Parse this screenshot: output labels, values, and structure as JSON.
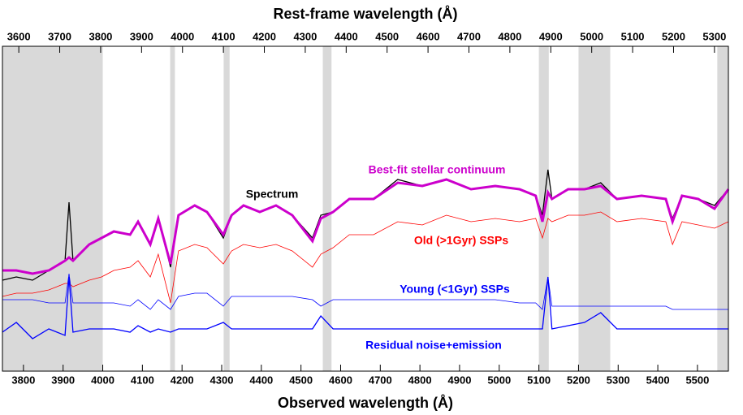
{
  "chart_data": {
    "type": "line",
    "xlabel": "Observed wavelength (Å)",
    "x2label": "Rest-frame wavelength (Å)",
    "xlim": [
      3747,
      5578
    ],
    "xticks": [
      3800,
      3900,
      4000,
      4100,
      4200,
      4300,
      4400,
      4500,
      4600,
      4700,
      4800,
      4900,
      5000,
      5100,
      5200,
      5300,
      5400,
      5500
    ],
    "x2lim": [
      3560,
      5334
    ],
    "x2ticks": [
      3600,
      3700,
      3800,
      3900,
      4000,
      4100,
      4200,
      4300,
      4400,
      4500,
      4600,
      4700,
      4800,
      4900,
      5000,
      5100,
      5200,
      5300
    ],
    "ylim": [
      0,
      1
    ],
    "masked_regions": [
      [
        3747,
        4000
      ],
      [
        4170,
        4182
      ],
      [
        4305,
        4320
      ],
      [
        4555,
        4577
      ],
      [
        5100,
        5125
      ],
      [
        5200,
        5280
      ],
      [
        5550,
        5578
      ]
    ],
    "x": [
      3747,
      3782,
      3823,
      3864,
      3905,
      3915,
      3925,
      3966,
      3997,
      4028,
      4069,
      4089,
      4120,
      4140,
      4171,
      4191,
      4232,
      4263,
      4304,
      4325,
      4355,
      4396,
      4437,
      4478,
      4529,
      4550,
      4581,
      4622,
      4683,
      4744,
      4806,
      4867,
      4929,
      4990,
      5051,
      5092,
      5109,
      5123,
      5133,
      5174,
      5215,
      5256,
      5297,
      5359,
      5420,
      5437,
      5461,
      5502,
      5543,
      5578
    ],
    "series": [
      {
        "name": "Old (>1Gyr) SSPs",
        "color": "#ff0000",
        "values": [
          0.23,
          0.24,
          0.24,
          0.25,
          0.27,
          0.27,
          0.26,
          0.28,
          0.29,
          0.31,
          0.32,
          0.34,
          0.29,
          0.36,
          0.21,
          0.37,
          0.39,
          0.38,
          0.33,
          0.37,
          0.39,
          0.38,
          0.39,
          0.37,
          0.32,
          0.36,
          0.38,
          0.42,
          0.42,
          0.46,
          0.45,
          0.48,
          0.46,
          0.47,
          0.46,
          0.47,
          0.41,
          0.47,
          0.46,
          0.48,
          0.48,
          0.49,
          0.46,
          0.47,
          0.46,
          0.39,
          0.46,
          0.45,
          0.44,
          0.46
        ]
      },
      {
        "name": "Young (<1Gyr) SSPs",
        "color": "#0000ff",
        "values": [
          0.22,
          0.22,
          0.22,
          0.21,
          0.21,
          0.3,
          0.21,
          0.21,
          0.21,
          0.21,
          0.2,
          0.22,
          0.19,
          0.22,
          0.19,
          0.23,
          0.24,
          0.24,
          0.2,
          0.23,
          0.23,
          0.23,
          0.23,
          0.23,
          0.22,
          0.2,
          0.22,
          0.22,
          0.22,
          0.22,
          0.22,
          0.22,
          0.22,
          0.22,
          0.21,
          0.21,
          0.19,
          0.29,
          0.2,
          0.2,
          0.2,
          0.2,
          0.2,
          0.2,
          0.2,
          0.19,
          0.19,
          0.19,
          0.19,
          0.19
        ]
      },
      {
        "name": "Residual noise+emission",
        "color": "#0000ff",
        "values": [
          0.12,
          0.15,
          0.1,
          0.13,
          0.11,
          0.29,
          0.12,
          0.13,
          0.13,
          0.13,
          0.12,
          0.14,
          0.12,
          0.13,
          0.12,
          0.13,
          0.13,
          0.13,
          0.15,
          0.13,
          0.13,
          0.13,
          0.13,
          0.13,
          0.13,
          0.17,
          0.13,
          0.13,
          0.13,
          0.13,
          0.13,
          0.13,
          0.13,
          0.13,
          0.13,
          0.13,
          0.13,
          0.29,
          0.13,
          0.14,
          0.15,
          0.18,
          0.13,
          0.13,
          0.13,
          0.13,
          0.13,
          0.13,
          0.13,
          0.13
        ]
      },
      {
        "name": "Spectrum",
        "color": "#000000",
        "values": [
          0.28,
          0.29,
          0.28,
          0.31,
          0.34,
          0.52,
          0.34,
          0.39,
          0.41,
          0.43,
          0.42,
          0.46,
          0.39,
          0.47,
          0.32,
          0.48,
          0.51,
          0.49,
          0.41,
          0.48,
          0.51,
          0.49,
          0.51,
          0.48,
          0.41,
          0.48,
          0.49,
          0.53,
          0.53,
          0.59,
          0.57,
          0.59,
          0.56,
          0.57,
          0.56,
          0.54,
          0.48,
          0.62,
          0.53,
          0.56,
          0.56,
          0.58,
          0.53,
          0.54,
          0.53,
          0.47,
          0.54,
          0.53,
          0.51,
          0.56
        ]
      },
      {
        "name": "Best-fit stellar continuum",
        "color": "#cc00cc",
        "values": [
          0.31,
          0.31,
          0.3,
          0.31,
          0.34,
          0.35,
          0.34,
          0.39,
          0.41,
          0.43,
          0.42,
          0.46,
          0.39,
          0.47,
          0.33,
          0.48,
          0.51,
          0.49,
          0.42,
          0.48,
          0.51,
          0.49,
          0.51,
          0.48,
          0.4,
          0.47,
          0.49,
          0.53,
          0.53,
          0.58,
          0.57,
          0.59,
          0.56,
          0.57,
          0.56,
          0.54,
          0.46,
          0.55,
          0.53,
          0.56,
          0.56,
          0.57,
          0.53,
          0.54,
          0.53,
          0.46,
          0.54,
          0.53,
          0.5,
          0.56
        ]
      }
    ]
  }
}
